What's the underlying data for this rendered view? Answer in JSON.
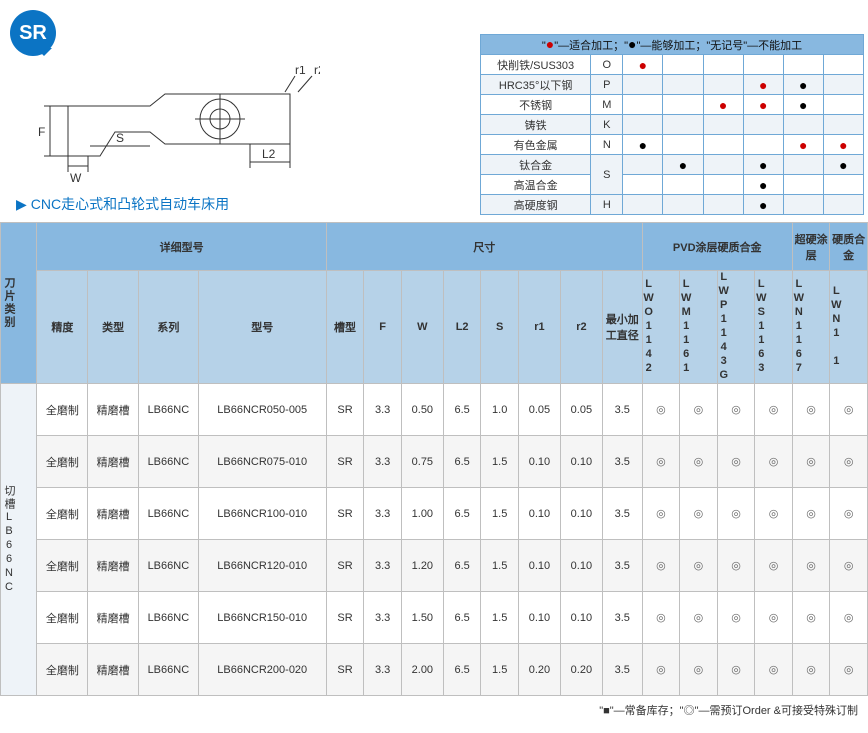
{
  "badge": "SR",
  "usage_text": "CNC走心式和凸轮式自动车床用",
  "diagram": {
    "labels": {
      "F": "F",
      "W": "W",
      "S": "S",
      "L2": "L2",
      "r1": "r1",
      "r2": "r2"
    },
    "stroke": "#333"
  },
  "material_table": {
    "legend": "\"●\"—适合加工；\"●\"—能够加工；\"无记号\"—不能加工",
    "rows": [
      {
        "name": "快削铁/SUS303",
        "code": "O",
        "dots": [
          "r",
          "",
          "",
          "",
          "",
          ""
        ]
      },
      {
        "name": "HRC35°以下钢",
        "code": "P",
        "dots": [
          "",
          "",
          "",
          "r",
          "b",
          ""
        ]
      },
      {
        "name": "不锈钢",
        "code": "M",
        "dots": [
          "",
          "",
          "r",
          "r",
          "b",
          ""
        ]
      },
      {
        "name": "铸铁",
        "code": "K",
        "dots": [
          "",
          "",
          "",
          "",
          "",
          ""
        ]
      },
      {
        "name": "有色金属",
        "code": "N",
        "dots": [
          "b",
          "",
          "",
          "",
          "r",
          "r"
        ]
      },
      {
        "name": "钛合金",
        "code": "S",
        "dots": [
          "",
          "b",
          "",
          "b",
          "",
          "b"
        ],
        "rowspan": 2
      },
      {
        "name": "高温合金",
        "code": "",
        "dots": [
          "",
          "",
          "",
          "b",
          "",
          ""
        ],
        "merge_up": true
      },
      {
        "name": "高硬度钢",
        "code": "H",
        "dots": [
          "",
          "",
          "",
          "b",
          "",
          ""
        ]
      }
    ],
    "colors": {
      "r": "#c00",
      "b": "#000"
    }
  },
  "spec_table": {
    "header1": {
      "blade_class": "刀片类别",
      "detail_model": "详细型号",
      "dimensions": "尺寸",
      "pvd": "PVD涂层硬质合金",
      "superhard": "超硬涂层",
      "hardalloy": "硬质合金"
    },
    "header2": {
      "precision": "精度",
      "type": "类型",
      "series": "系列",
      "model": "型号",
      "groove": "槽型",
      "F": "F",
      "W": "W",
      "L2": "L2",
      "S": "S",
      "r1": "r1",
      "r2": "r2",
      "mindia": "最小加工直径",
      "codes": [
        "LWO1142",
        "LWM1161",
        "LWP1143G",
        "LWS1163",
        "LWN1167",
        "LWN1 1"
      ]
    },
    "side_label": "切槽LB66NC",
    "rows": [
      {
        "p": "全磨制",
        "t": "精磨槽",
        "s": "LB66NC",
        "m": "LB66NCR050-005",
        "g": "SR",
        "F": "3.3",
        "W": "0.50",
        "L2": "6.5",
        "S": "1.0",
        "r1": "0.05",
        "r2": "0.05",
        "d": "3.5",
        "marks": [
          "◎",
          "◎",
          "◎",
          "◎",
          "◎",
          "◎"
        ]
      },
      {
        "p": "全磨制",
        "t": "精磨槽",
        "s": "LB66NC",
        "m": "LB66NCR075-010",
        "g": "SR",
        "F": "3.3",
        "W": "0.75",
        "L2": "6.5",
        "S": "1.5",
        "r1": "0.10",
        "r2": "0.10",
        "d": "3.5",
        "marks": [
          "◎",
          "◎",
          "◎",
          "◎",
          "◎",
          "◎"
        ]
      },
      {
        "p": "全磨制",
        "t": "精磨槽",
        "s": "LB66NC",
        "m": "LB66NCR100-010",
        "g": "SR",
        "F": "3.3",
        "W": "1.00",
        "L2": "6.5",
        "S": "1.5",
        "r1": "0.10",
        "r2": "0.10",
        "d": "3.5",
        "marks": [
          "◎",
          "◎",
          "◎",
          "◎",
          "◎",
          "◎"
        ]
      },
      {
        "p": "全磨制",
        "t": "精磨槽",
        "s": "LB66NC",
        "m": "LB66NCR120-010",
        "g": "SR",
        "F": "3.3",
        "W": "1.20",
        "L2": "6.5",
        "S": "1.5",
        "r1": "0.10",
        "r2": "0.10",
        "d": "3.5",
        "marks": [
          "◎",
          "◎",
          "◎",
          "◎",
          "◎",
          "◎"
        ]
      },
      {
        "p": "全磨制",
        "t": "精磨槽",
        "s": "LB66NC",
        "m": "LB66NCR150-010",
        "g": "SR",
        "F": "3.3",
        "W": "1.50",
        "L2": "6.5",
        "S": "1.5",
        "r1": "0.10",
        "r2": "0.10",
        "d": "3.5",
        "marks": [
          "◎",
          "◎",
          "◎",
          "◎",
          "◎",
          "◎"
        ]
      },
      {
        "p": "全磨制",
        "t": "精磨槽",
        "s": "LB66NC",
        "m": "LB66NCR200-020",
        "g": "SR",
        "F": "3.3",
        "W": "2.00",
        "L2": "6.5",
        "S": "1.5",
        "r1": "0.20",
        "r2": "0.20",
        "d": "3.5",
        "marks": [
          "◎",
          "◎",
          "◎",
          "◎",
          "◎",
          "◎"
        ]
      }
    ]
  },
  "footer": "\"■\"—常备库存；\"◎\"—需预订Order  &可接受特殊订制"
}
